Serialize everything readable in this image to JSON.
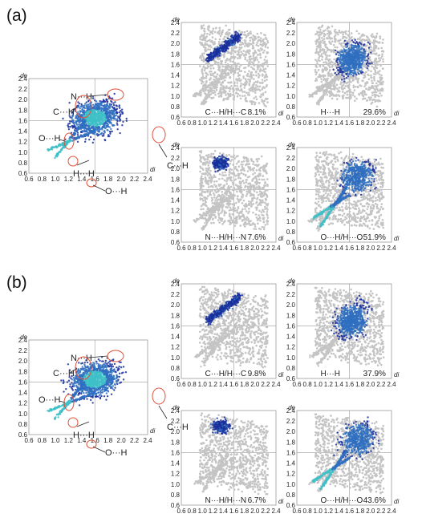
{
  "figure": {
    "panels": [
      {
        "label": "(a)",
        "overview": {
          "annotations": [
            "N···H",
            "C···H",
            "O···H",
            "H···H",
            "O···H",
            "C···H"
          ]
        },
        "subplots": [
          {
            "contact": "C···H/H···C",
            "percent": "8.1%"
          },
          {
            "contact": "H···H",
            "percent": "29.6%"
          },
          {
            "contact": "N···H/H···N",
            "percent": "7.6%"
          },
          {
            "contact": "O···H/H···O",
            "percent": "51.9%"
          }
        ]
      },
      {
        "label": "(b)",
        "overview": {
          "annotations": [
            "N···H",
            "C···H",
            "O···H",
            "H···H",
            "O···H",
            "C···H"
          ]
        },
        "subplots": [
          {
            "contact": "C···H/H···C",
            "percent": "9.8%"
          },
          {
            "contact": "H···H",
            "percent": "37.9%"
          },
          {
            "contact": "N···H/H···N",
            "percent": "6.7%"
          },
          {
            "contact": "O···H/H···O",
            "percent": "43.6%"
          }
        ]
      }
    ],
    "axes": {
      "xlabel": "di",
      "ylabel": "de"
    }
  },
  "colors": {
    "grey_cloud": "#c4c4c4",
    "blue_high": "#1a2f9c",
    "blue_mid": "#2f6fc0",
    "cyan": "#3fc0c8",
    "annotation_ring": "#e0503a"
  },
  "chart_data": [
    {
      "type": "heatmap",
      "title": "",
      "xlabel": "di",
      "ylabel": "de",
      "xlim": [
        0.6,
        2.4
      ],
      "ylim": [
        0.6,
        2.4
      ],
      "x_ticks": [
        "0.6",
        "0.8",
        "1.0",
        "1.2",
        "1.4",
        "1.6",
        "1.8",
        "2.0",
        "2.2",
        "2.4"
      ],
      "y_ticks": [
        "0.6",
        "0.8",
        "1.0",
        "1.2",
        "1.4",
        "1.6",
        "1.8",
        "2.0",
        "2.2",
        "2.4"
      ],
      "series": [
        {
          "name": "C···H/H···C",
          "values": [
            8.1
          ]
        },
        {
          "name": "H···H",
          "values": [
            29.6
          ]
        },
        {
          "name": "N···H/H···N",
          "values": [
            7.6
          ]
        },
        {
          "name": "O···H/H···O",
          "values": [
            51.9
          ]
        }
      ]
    },
    {
      "type": "heatmap",
      "title": "",
      "xlabel": "di",
      "ylabel": "de",
      "xlim": [
        0.6,
        2.4
      ],
      "ylim": [
        0.6,
        2.4
      ],
      "x_ticks": [
        "0.6",
        "0.8",
        "1.0",
        "1.2",
        "1.4",
        "1.6",
        "1.8",
        "2.0",
        "2.2",
        "2.4"
      ],
      "y_ticks": [
        "0.6",
        "0.8",
        "1.0",
        "1.2",
        "1.4",
        "1.6",
        "1.8",
        "2.0",
        "2.2",
        "2.4"
      ],
      "series": [
        {
          "name": "C···H/H···C",
          "values": [
            9.8
          ]
        },
        {
          "name": "H···H",
          "values": [
            37.9
          ]
        },
        {
          "name": "N···H/H···N",
          "values": [
            6.7
          ]
        },
        {
          "name": "O···H/H···O",
          "values": [
            43.6
          ]
        }
      ]
    }
  ]
}
